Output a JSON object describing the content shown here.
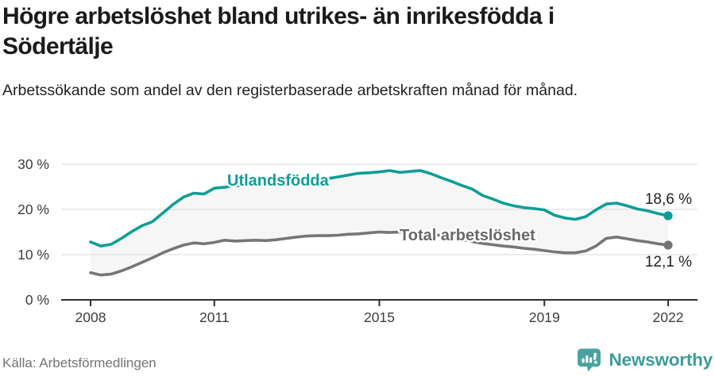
{
  "header": {
    "title": "Högre arbetslöshet bland utrikes- än inrikesfödda i Södertälje",
    "subtitle": "Arbetssökande som andel av den registerbaserade arbetskraften månad för månad."
  },
  "footer": {
    "source": "Källa: Arbetsförmedlingen",
    "brand": "Newsworthy",
    "brand_icon": "newsworthy-pin-bar-chart-icon"
  },
  "colors": {
    "accent_teal": "#0d9e96",
    "series_gray": "#767676",
    "series_gray_label": "#686868",
    "band_fill": "#f6f6f6",
    "grid": "#e0e0e0",
    "axis": "#2f2f2f",
    "tick_text": "#3c3c3c",
    "value_text": "#1f1f1f",
    "brand_teal": "#3d9c9b"
  },
  "chart_data": {
    "type": "line",
    "title": "Högre arbetslöshet bland utrikes- än inrikesfödda i Södertälje",
    "subtitle": "Arbetssökande som andel av den registerbaserade arbetskraften månad för månad.",
    "source": "Källa: Arbetsförmedlingen",
    "x_unit": "year (monthly data shown, sampled quarterly here)",
    "xlim": [
      2008,
      2022.1
    ],
    "ylim": [
      0,
      32
    ],
    "x_ticks": [
      2008,
      2011,
      2015,
      2019,
      2022
    ],
    "y_tick_values": [
      0,
      10,
      20,
      30
    ],
    "y_tick_labels": [
      "0 %",
      "10 %",
      "20 %",
      "30 %"
    ],
    "grid": "horizontal",
    "legend_position": "inline-on-line",
    "band_between_series": true,
    "x": [
      2008,
      2008.25,
      2008.5,
      2008.75,
      2009,
      2009.25,
      2009.5,
      2009.75,
      2010,
      2010.25,
      2010.5,
      2010.75,
      2011,
      2011.25,
      2011.5,
      2011.75,
      2012,
      2012.25,
      2012.5,
      2012.75,
      2013,
      2013.25,
      2013.5,
      2013.75,
      2014,
      2014.25,
      2014.5,
      2014.75,
      2015,
      2015.25,
      2015.5,
      2015.75,
      2016,
      2016.25,
      2016.5,
      2016.75,
      2017,
      2017.25,
      2017.5,
      2017.75,
      2018,
      2018.25,
      2018.5,
      2018.75,
      2019,
      2019.25,
      2019.5,
      2019.75,
      2020,
      2020.25,
      2020.5,
      2020.75,
      2021,
      2021.25,
      2021.5,
      2021.75,
      2022
    ],
    "series": [
      {
        "name": "Utlandsfödda",
        "color": "#0d9e96",
        "end_label": "18,6 %",
        "end_value": 18.6,
        "values": [
          12.8,
          11.9,
          12.3,
          13.6,
          15.1,
          16.4,
          17.3,
          19.2,
          21.1,
          22.7,
          23.6,
          23.4,
          24.7,
          24.9,
          25.3,
          25.2,
          25.6,
          25.8,
          25.9,
          26.1,
          26.2,
          26.5,
          26.4,
          26.8,
          27.2,
          27.6,
          28.0,
          28.1,
          28.3,
          28.6,
          28.2,
          28.4,
          28.6,
          27.9,
          27.0,
          26.2,
          25.3,
          24.5,
          23.1,
          22.3,
          21.4,
          20.8,
          20.4,
          20.2,
          19.9,
          18.7,
          18.1,
          17.8,
          18.4,
          19.9,
          21.2,
          21.4,
          20.8,
          20.1,
          19.7,
          19.1,
          18.6
        ]
      },
      {
        "name": "Total arbetslöshet",
        "color": "#767676",
        "end_label": "12,1 %",
        "end_value": 12.1,
        "values": [
          6.0,
          5.5,
          5.7,
          6.4,
          7.3,
          8.3,
          9.3,
          10.4,
          11.3,
          12.1,
          12.6,
          12.4,
          12.7,
          13.2,
          13.0,
          13.1,
          13.2,
          13.1,
          13.3,
          13.6,
          13.9,
          14.1,
          14.2,
          14.2,
          14.3,
          14.5,
          14.6,
          14.8,
          15.0,
          14.9,
          15.0,
          14.9,
          14.9,
          14.6,
          14.2,
          13.8,
          13.4,
          12.9,
          12.5,
          12.2,
          11.9,
          11.7,
          11.4,
          11.2,
          10.9,
          10.6,
          10.4,
          10.4,
          10.8,
          11.9,
          13.6,
          13.9,
          13.5,
          13.1,
          12.8,
          12.4,
          12.1
        ]
      }
    ]
  }
}
